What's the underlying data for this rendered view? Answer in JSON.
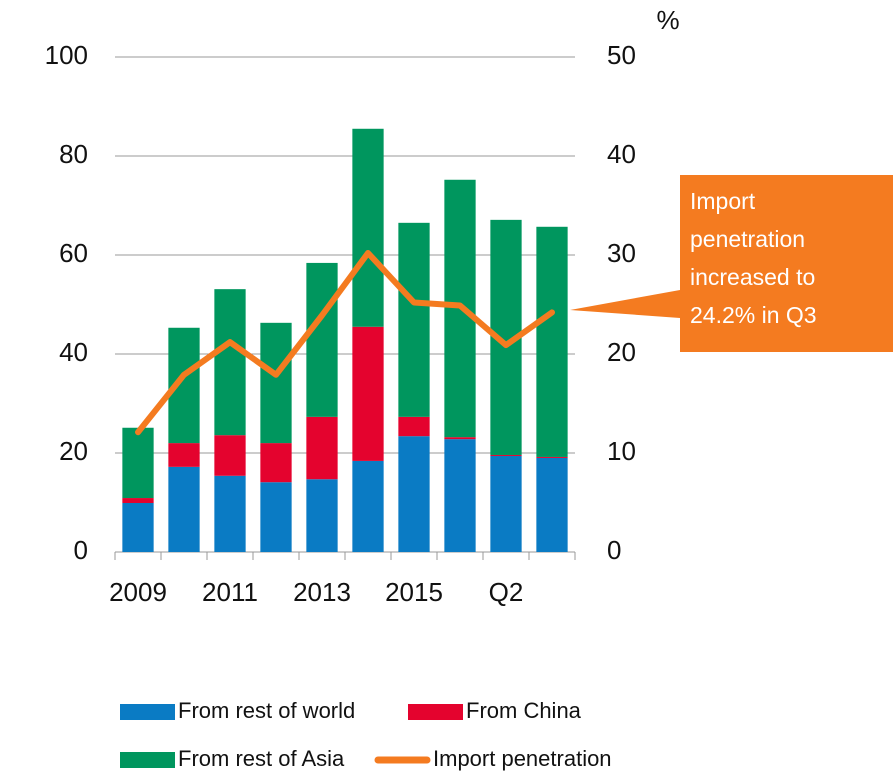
{
  "chart_data": {
    "type": "bar",
    "categories": [
      "2009",
      null,
      "2011",
      null,
      "2013",
      null,
      "2015",
      null,
      "Q2",
      null
    ],
    "series": [
      {
        "name": "From rest of world",
        "color": "#0a7bc4",
        "values": [
          9.9,
          17.2,
          15.4,
          14.1,
          14.7,
          18.4,
          23.4,
          22.8,
          19.4,
          19.0
        ]
      },
      {
        "name": "From China",
        "color": "#e4032e",
        "values": [
          1.0,
          4.8,
          8.2,
          7.9,
          12.6,
          27.1,
          3.9,
          0.4,
          0.2,
          0.2
        ]
      },
      {
        "name": "From  rest of Asia",
        "color": "#00965e",
        "values": [
          14.2,
          23.3,
          29.5,
          24.3,
          31.1,
          40.0,
          39.2,
          52.0,
          47.5,
          46.5
        ]
      },
      {
        "name": "Import penetration",
        "color": "#f47b20",
        "type": "line",
        "axis": "y2",
        "values": [
          12.1,
          17.9,
          21.2,
          17.9,
          23.9,
          30.2,
          25.2,
          24.9,
          20.9,
          24.2
        ]
      }
    ],
    "ylim": [
      0,
      100
    ],
    "yticks": [
      0,
      20,
      40,
      60,
      80,
      100
    ],
    "y2lim": [
      0,
      50
    ],
    "y2ticks": [
      0,
      10,
      20,
      30,
      40,
      50
    ],
    "y2label": "%",
    "grid": true,
    "annotation": {
      "lines": [
        "Import",
        "penetration",
        "increased to",
        "24.2% in Q3"
      ],
      "color": "#f47b20"
    }
  }
}
